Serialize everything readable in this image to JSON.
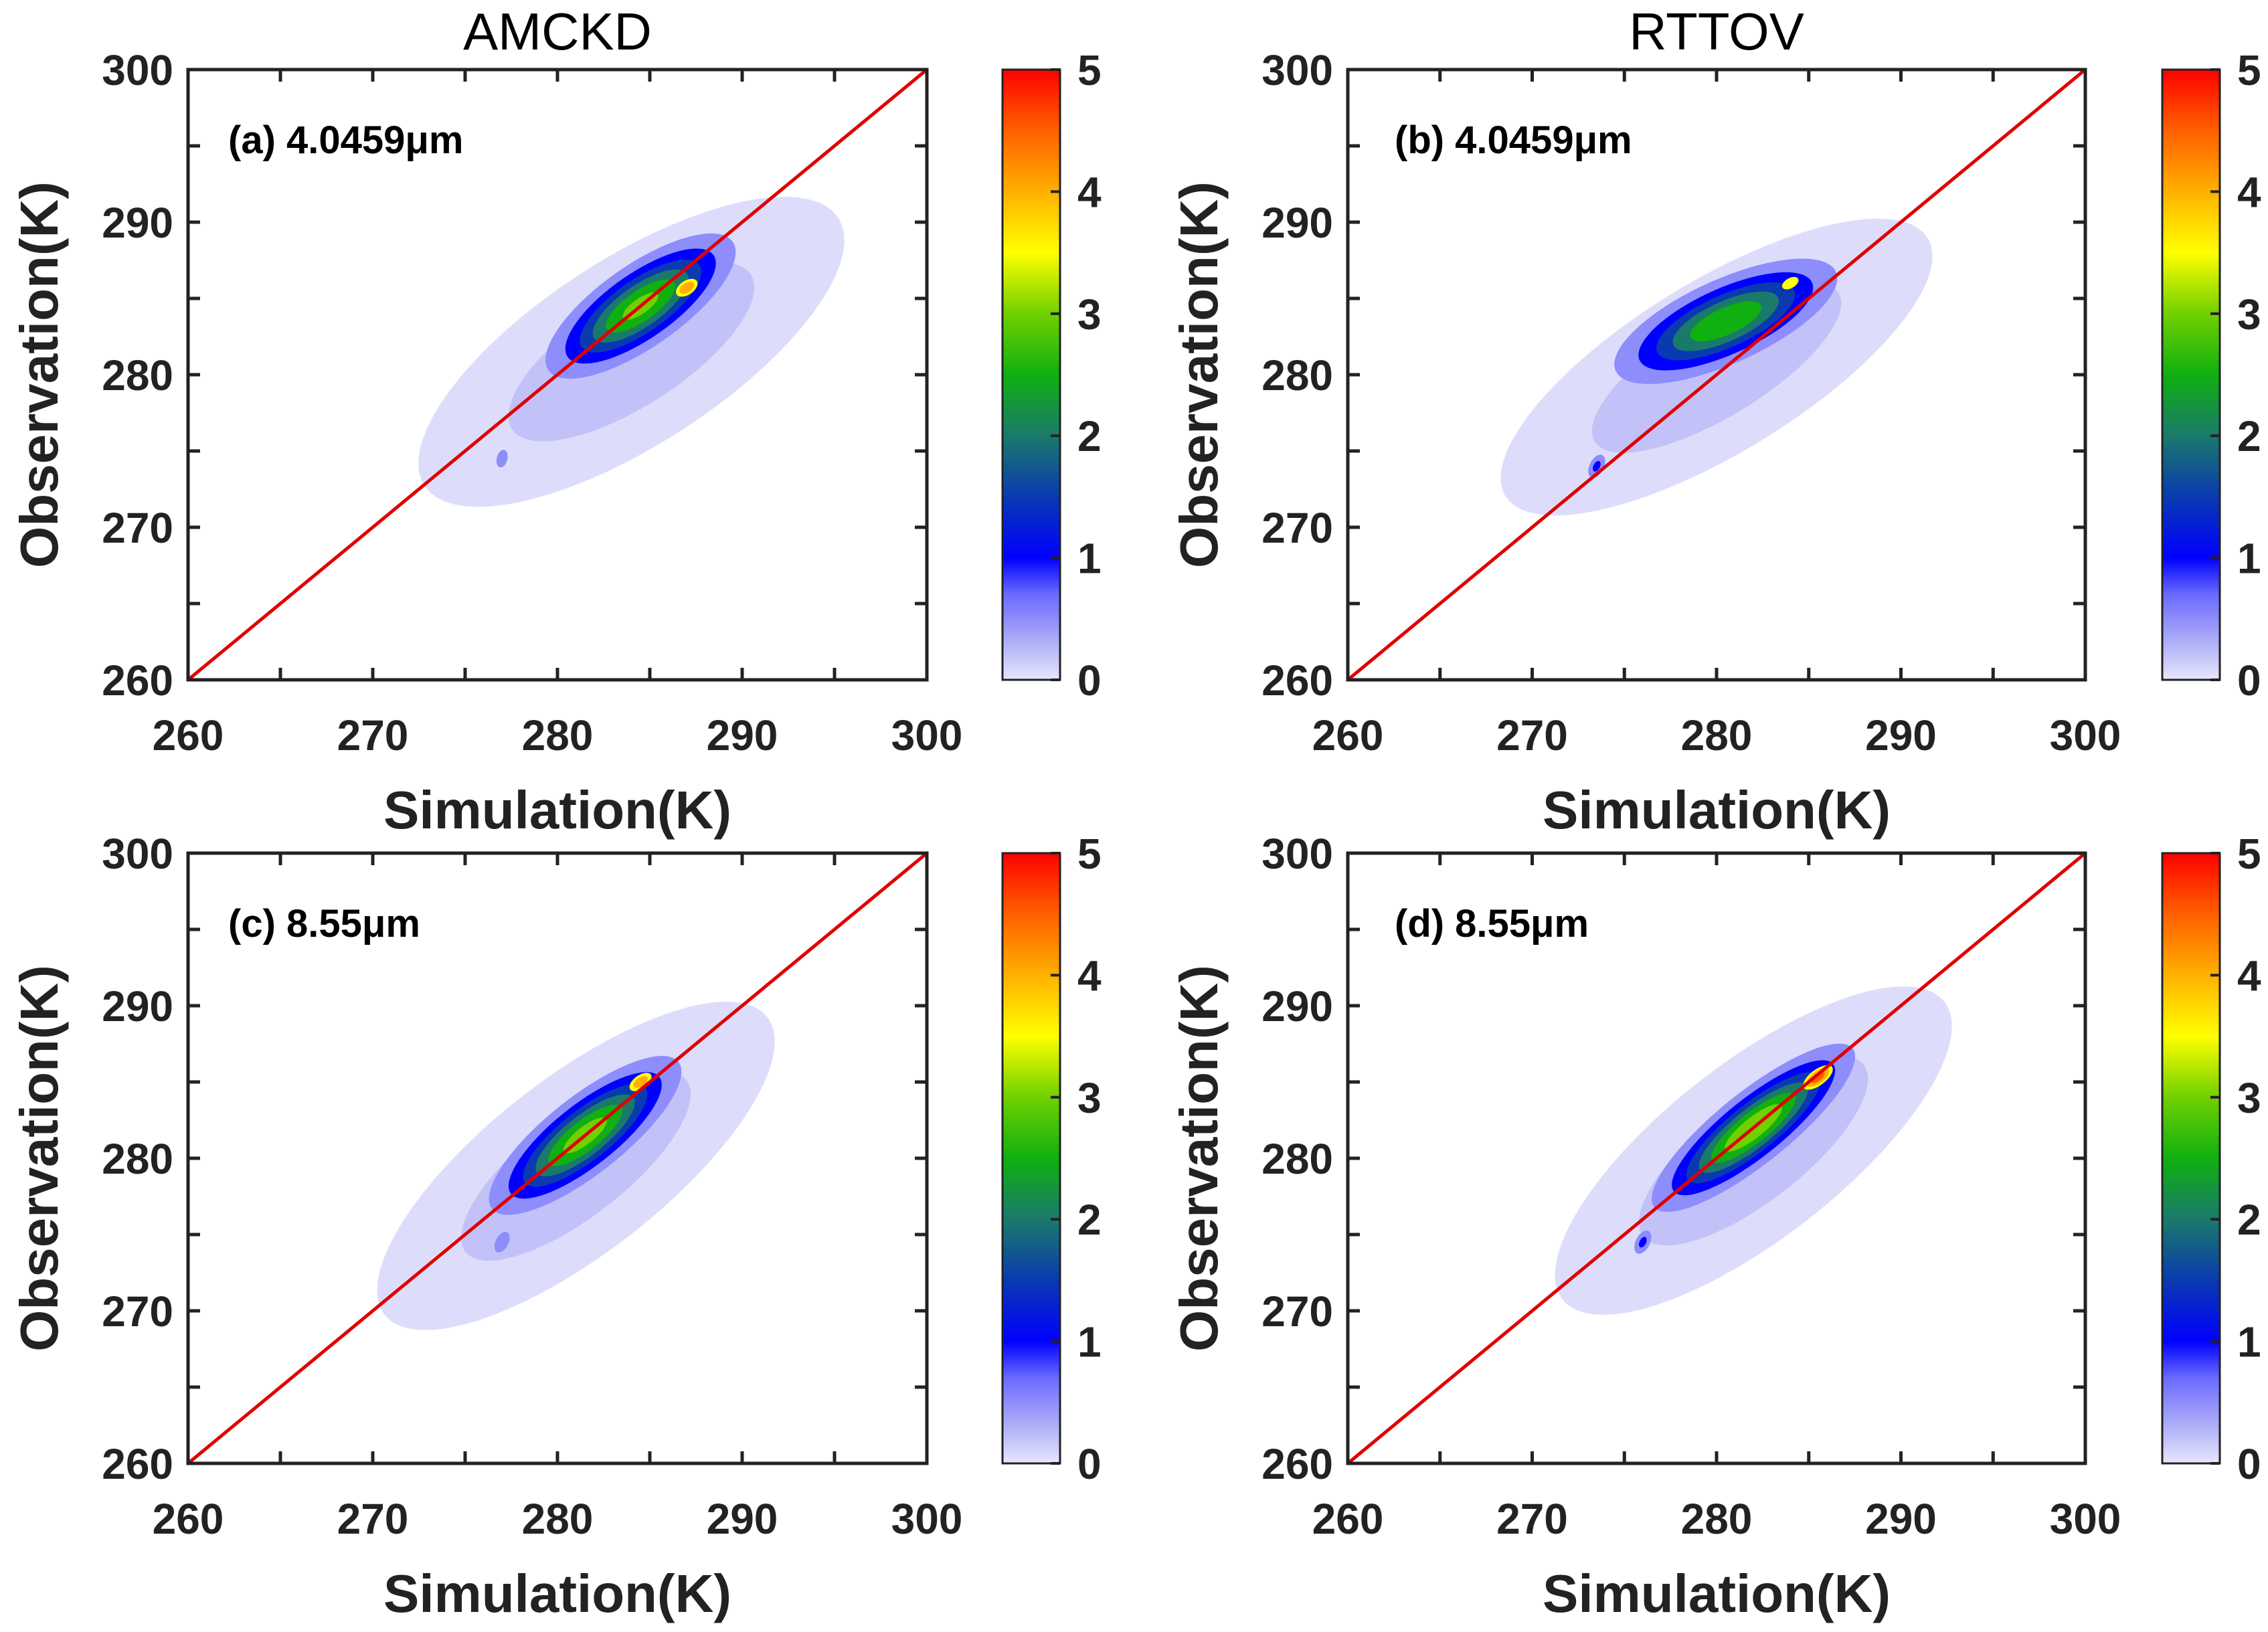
{
  "chart_data": [
    {
      "type": "heatmap",
      "column_title": "AMCKD",
      "panel_label": "(a) 4.0459μm",
      "xlabel": "Simulation(K)",
      "ylabel": "Observation(K)",
      "xlim": [
        260,
        300
      ],
      "ylim": [
        260,
        300
      ],
      "xticks": [
        "260",
        "270",
        "280",
        "290",
        "300"
      ],
      "yticks": [
        "260",
        "270",
        "280",
        "290",
        "300"
      ],
      "colorbar": {
        "range": [
          0,
          5
        ],
        "ticks": [
          "0",
          "1",
          "2",
          "3",
          "4",
          "5"
        ]
      },
      "reference_line": "1:1",
      "density_components": [
        {
          "center": [
            284,
            281.5
          ],
          "angle": 40,
          "sigma": [
            7,
            2.8
          ],
          "peak": 0.4,
          "min_level": 0
        },
        {
          "center": [
            284.5,
            284.5
          ],
          "angle": 42,
          "sigma": [
            3.4,
            1.3
          ],
          "peak": 3.2,
          "min_level": 0.5
        },
        {
          "center": [
            287,
            285.7
          ],
          "angle": 45,
          "sigma": [
            1.0,
            0.6
          ],
          "peak": 4.5,
          "min_level": 3.5
        },
        {
          "center": [
            277,
            274.5
          ],
          "angle": 80,
          "sigma": [
            0.6,
            0.3
          ],
          "peak": 0.8,
          "min_level": 0.5
        }
      ]
    },
    {
      "type": "heatmap",
      "column_title": "RTTOV",
      "panel_label": "(b) 4.0459μm",
      "xlabel": "Simulation(K)",
      "ylabel": "Observation(K)",
      "xlim": [
        260,
        300
      ],
      "ylim": [
        260,
        300
      ],
      "xticks": [
        "260",
        "270",
        "280",
        "290",
        "300"
      ],
      "yticks": [
        "260",
        "270",
        "280",
        "290",
        "300"
      ],
      "colorbar": {
        "range": [
          0,
          5
        ],
        "ticks": [
          "0",
          "1",
          "2",
          "3",
          "4",
          "5"
        ]
      },
      "reference_line": "1:1",
      "density_components": [
        {
          "center": [
            280,
            280.5
          ],
          "angle": 38,
          "sigma": [
            7,
            2.6
          ],
          "peak": 0.4,
          "min_level": 0
        },
        {
          "center": [
            280.5,
            283.5
          ],
          "angle": 30,
          "sigma": [
            3.6,
            1.4
          ],
          "peak": 3.0,
          "min_level": 0.5
        },
        {
          "center": [
            284,
            286
          ],
          "angle": 40,
          "sigma": [
            1.0,
            0.6
          ],
          "peak": 4.0,
          "min_level": 3.5
        },
        {
          "center": [
            273.5,
            274
          ],
          "angle": 70,
          "sigma": [
            0.6,
            0.3
          ],
          "peak": 1.2,
          "min_level": 0.5
        }
      ]
    },
    {
      "type": "heatmap",
      "column_title": "",
      "panel_label": "(c) 8.55μm",
      "xlabel": "Simulation(K)",
      "ylabel": "Observation(K)",
      "xlim": [
        260,
        300
      ],
      "ylim": [
        260,
        300
      ],
      "xticks": [
        "260",
        "270",
        "280",
        "290",
        "300"
      ],
      "yticks": [
        "260",
        "270",
        "280",
        "290",
        "300"
      ],
      "colorbar": {
        "range": [
          0,
          5
        ],
        "ticks": [
          "0",
          "1",
          "2",
          "3",
          "4",
          "5"
        ]
      },
      "reference_line": "1:1",
      "density_components": [
        {
          "center": [
            281,
            279.5
          ],
          "angle": 45,
          "sigma": [
            7,
            2.6
          ],
          "peak": 0.4,
          "min_level": 0
        },
        {
          "center": [
            281.5,
            281.5
          ],
          "angle": 45,
          "sigma": [
            3.6,
            1.2
          ],
          "peak": 3.3,
          "min_level": 0.5
        },
        {
          "center": [
            284.5,
            285
          ],
          "angle": 45,
          "sigma": [
            1.1,
            0.6
          ],
          "peak": 4.4,
          "min_level": 3.5
        },
        {
          "center": [
            277,
            274.5
          ],
          "angle": 70,
          "sigma": [
            0.6,
            0.3
          ],
          "peak": 1.0,
          "min_level": 0.5
        }
      ]
    },
    {
      "type": "heatmap",
      "column_title": "",
      "panel_label": "(d) 8.55μm",
      "xlabel": "Simulation(K)",
      "ylabel": "Observation(K)",
      "xlim": [
        260,
        300
      ],
      "ylim": [
        260,
        300
      ],
      "xticks": [
        "260",
        "270",
        "280",
        "290",
        "300"
      ],
      "yticks": [
        "260",
        "270",
        "280",
        "290",
        "300"
      ],
      "colorbar": {
        "range": [
          0,
          5
        ],
        "ticks": [
          "0",
          "1",
          "2",
          "3",
          "4",
          "5"
        ]
      },
      "reference_line": "1:1",
      "density_components": [
        {
          "center": [
            282,
            280.5
          ],
          "angle": 45,
          "sigma": [
            7,
            2.6
          ],
          "peak": 0.4,
          "min_level": 0
        },
        {
          "center": [
            282,
            282
          ],
          "angle": 45,
          "sigma": [
            3.8,
            1.1
          ],
          "peak": 3.5,
          "min_level": 0.5
        },
        {
          "center": [
            285.5,
            285.3
          ],
          "angle": 45,
          "sigma": [
            1.3,
            0.6
          ],
          "peak": 4.8,
          "min_level": 3.5
        },
        {
          "center": [
            276,
            274.5
          ],
          "angle": 70,
          "sigma": [
            0.6,
            0.3
          ],
          "peak": 1.2,
          "min_level": 0.5
        }
      ]
    }
  ],
  "contour_levels": [
    0.05,
    0.2,
    0.5,
    1,
    1.5,
    2,
    2.5,
    3,
    3.5,
    4,
    4.5
  ],
  "colors": {
    "line": "#e00000",
    "axis": "#222222",
    "colormap": [
      [
        0,
        "#e6e6fc"
      ],
      [
        0.3,
        "#b0b0f8"
      ],
      [
        0.7,
        "#6a6aff"
      ],
      [
        1,
        "#0000ff"
      ],
      [
        1.5,
        "#0a3ab0"
      ],
      [
        2,
        "#1a7a6a"
      ],
      [
        2.5,
        "#10b010"
      ],
      [
        3,
        "#70d000"
      ],
      [
        3.5,
        "#ffff00"
      ],
      [
        4,
        "#ffb000"
      ],
      [
        4.5,
        "#ff6000"
      ],
      [
        5,
        "#ff0000"
      ]
    ]
  }
}
